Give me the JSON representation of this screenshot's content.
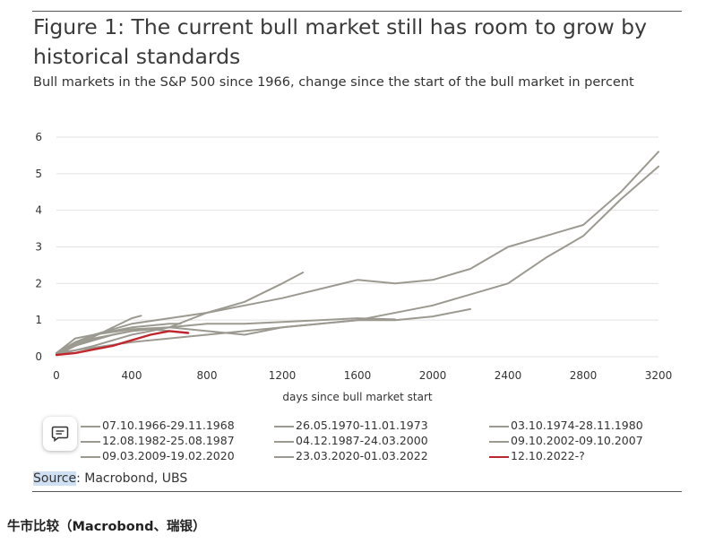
{
  "header": {
    "title": "Figure 1: The current bull market still has room to grow by historical standards",
    "subtitle": "Bull markets in the S&P 500 since 1966, change since the start of the bull market in percent"
  },
  "footer": {
    "source_label": "Source",
    "source_text": ": Macrobond, UBS",
    "caption": "牛市比较（Macrobond、瑞银）"
  },
  "colors": {
    "past": "#9c9a90",
    "current": "#c0262d",
    "grid": "#e2e2e2"
  },
  "icons": {
    "comment": "comment-icon"
  },
  "chart_data": {
    "type": "line",
    "title": "Figure 1: The current bull market still has room to grow by historical standards",
    "xlabel": "days since bull market start",
    "ylabel": "",
    "xlim": [
      0,
      3200
    ],
    "ylim": [
      0,
      6
    ],
    "xticks": [
      0,
      400,
      800,
      1200,
      1600,
      2000,
      2400,
      2800,
      3200
    ],
    "yticks": [
      0,
      1,
      2,
      3,
      4,
      5,
      6
    ],
    "grid": "horizontal",
    "legend_position": "bottom",
    "series": [
      {
        "name": "07.10.1966-29.11.1968",
        "color": "past",
        "x": [
          0,
          100,
          200,
          300,
          400,
          450
        ],
        "y": [
          0.05,
          0.3,
          0.55,
          0.8,
          1.05,
          1.12
        ]
      },
      {
        "name": "26.05.1970-11.01.1973",
        "color": "past",
        "x": [
          0,
          100,
          200,
          300,
          400,
          500,
          600,
          660
        ],
        "y": [
          0.1,
          0.4,
          0.6,
          0.7,
          0.8,
          0.85,
          0.9,
          0.9
        ]
      },
      {
        "name": "03.10.1974-28.11.1980",
        "color": "past",
        "x": [
          0,
          100,
          200,
          400,
          600,
          800,
          1000,
          1200,
          1400,
          1600,
          1800,
          2000,
          2200
        ],
        "y": [
          0.1,
          0.5,
          0.6,
          0.75,
          0.8,
          0.7,
          0.6,
          0.8,
          0.9,
          1.0,
          1.0,
          1.1,
          1.3
        ]
      },
      {
        "name": "12.08.1982-25.08.1987",
        "color": "past",
        "x": [
          0,
          200,
          400,
          600,
          800,
          1000,
          1200,
          1310
        ],
        "y": [
          0.1,
          0.5,
          0.7,
          0.8,
          1.2,
          1.5,
          2.0,
          2.3
        ]
      },
      {
        "name": "04.12.1987-24.03.2000",
        "color": "past",
        "x": [
          0,
          400,
          800,
          1200,
          1600,
          2000,
          2400,
          2600,
          2800,
          3000,
          3200
        ],
        "y": [
          0.1,
          0.4,
          0.6,
          0.8,
          1.0,
          1.4,
          2.0,
          2.7,
          3.3,
          4.3,
          5.2
        ]
      },
      {
        "name": "09.10.2002-09.10.2007",
        "color": "past",
        "x": [
          0,
          200,
          400,
          600,
          800,
          1000,
          1200,
          1400,
          1600,
          1800
        ],
        "y": [
          0.05,
          0.3,
          0.6,
          0.8,
          0.9,
          0.9,
          0.95,
          1.0,
          1.05,
          1.02
        ]
      },
      {
        "name": "09.03.2009-19.02.2020",
        "color": "past",
        "x": [
          0,
          200,
          400,
          800,
          1200,
          1600,
          1800,
          2000,
          2200,
          2400,
          2600,
          2800,
          3000,
          3200
        ],
        "y": [
          0.1,
          0.6,
          0.9,
          1.2,
          1.6,
          2.1,
          2.0,
          2.1,
          2.4,
          3.0,
          3.3,
          3.6,
          4.5,
          5.6
        ]
      },
      {
        "name": "23.03.2020-01.03.2022",
        "color": "past",
        "x": [
          0,
          100,
          200,
          300,
          400,
          500,
          600,
          700
        ],
        "y": [
          0.05,
          0.3,
          0.45,
          0.6,
          0.7,
          0.75,
          0.7,
          0.65
        ]
      },
      {
        "name": "12.10.2022-?",
        "color": "current",
        "x": [
          0,
          100,
          200,
          300,
          400,
          500,
          600,
          700
        ],
        "y": [
          0.05,
          0.1,
          0.2,
          0.3,
          0.45,
          0.6,
          0.7,
          0.65
        ]
      }
    ]
  }
}
